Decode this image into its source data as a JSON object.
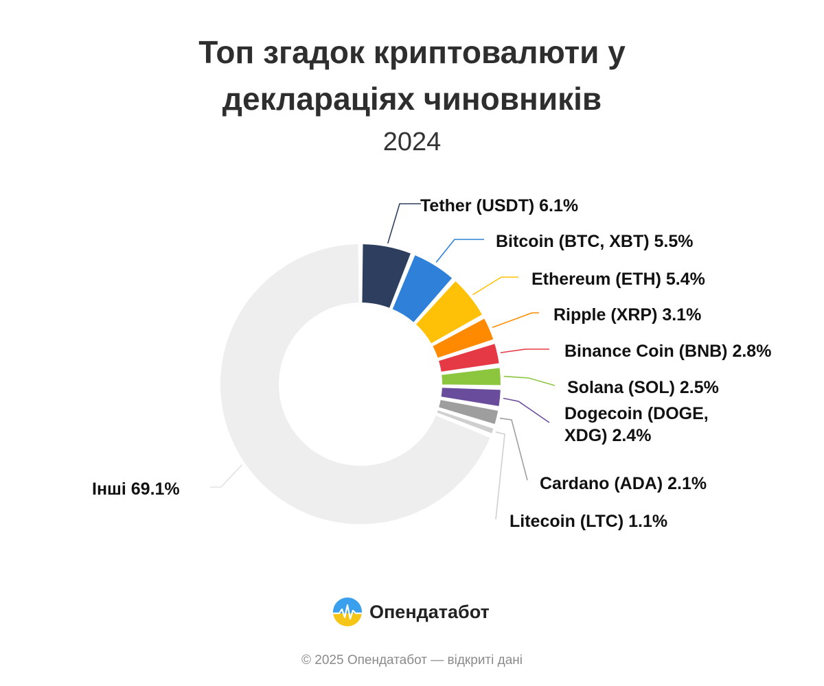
{
  "header": {
    "title_line1": "Топ згадок криптовалюти у",
    "title_line2": "деклараціях чиновників",
    "subtitle": "2024"
  },
  "chart_data": {
    "type": "pie",
    "variant": "donut",
    "title": "Топ згадок криптовалюти у деклараціях чиновників",
    "subtitle": "2024",
    "unit": "%",
    "slices": [
      {
        "name": "Tether (USDT)",
        "value": 6.1,
        "color": "#2d3e5f",
        "label": [
          "Tether (USDT) 6.1%"
        ]
      },
      {
        "name": "Bitcoin (BTC, XBT)",
        "value": 5.5,
        "color": "#2f80d8",
        "label": [
          "Bitcoin (BTC, XBT) 5.5%"
        ]
      },
      {
        "name": "Ethereum (ETH)",
        "value": 5.4,
        "color": "#ffc107",
        "label": [
          "Ethereum (ETH) 5.4%"
        ]
      },
      {
        "name": "Ripple (XRP)",
        "value": 3.1,
        "color": "#ff8a00",
        "label": [
          "Ripple (XRP) 3.1%"
        ]
      },
      {
        "name": "Binance Coin (BNB)",
        "value": 2.8,
        "color": "#e63946",
        "label": [
          "Binance Coin (BNB) 2.8%"
        ]
      },
      {
        "name": "Solana (SOL)",
        "value": 2.5,
        "color": "#8cc63f",
        "label": [
          "Solana (SOL) 2.5%"
        ]
      },
      {
        "name": "Dogecoin (DOGE, XDG)",
        "value": 2.4,
        "color": "#6a4c9c",
        "label": [
          "Dogecoin (DOGE,",
          "XDG) 2.4%"
        ]
      },
      {
        "name": "Cardano (ADA)",
        "value": 2.1,
        "color": "#9e9e9e",
        "label": [
          "Cardano (ADA) 2.1%"
        ]
      },
      {
        "name": "Litecoin (LTC)",
        "value": 1.1,
        "color": "#cfcfcf",
        "label": [
          "Litecoin (LTC) 1.1%"
        ]
      },
      {
        "name": "Інші",
        "value": 69.1,
        "color": "#eeeeee",
        "label": [
          "Інші 69.1%"
        ]
      }
    ]
  },
  "logo": {
    "text": "Опендатабот",
    "icon": "opendatabot-logo-icon"
  },
  "footer": {
    "text": "© 2025 Опендатабот — відкриті дані"
  }
}
